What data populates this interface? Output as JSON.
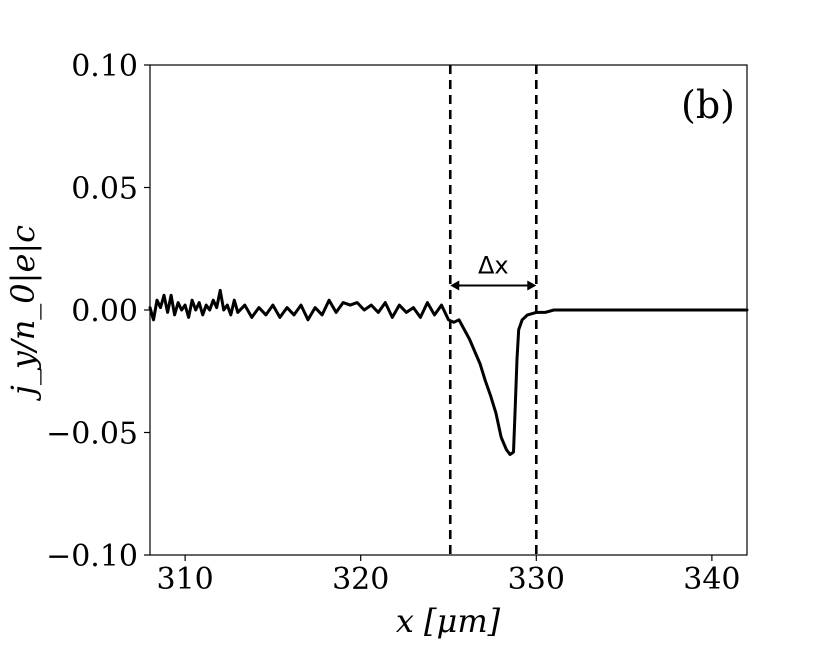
{
  "chart_data": {
    "type": "line",
    "panel_label": "(b)",
    "xlabel": "x [μm]",
    "ylabel": "j_y/n_0|e|c",
    "xlim": [
      308,
      342
    ],
    "ylim": [
      -0.1,
      0.1
    ],
    "xticks": [
      310,
      320,
      330,
      340
    ],
    "xtick_labels": [
      "310",
      "320",
      "330",
      "340"
    ],
    "yticks": [
      0.1,
      0.05,
      0.0,
      -0.05,
      -0.1
    ],
    "ytick_labels": [
      "0.10",
      "0.05",
      "0.00",
      "−0.05",
      "−0.10"
    ],
    "grid": false,
    "series": [
      {
        "color": "#000000",
        "x": [
          308.0,
          308.2,
          308.4,
          308.6,
          308.8,
          309.0,
          309.2,
          309.4,
          309.6,
          309.8,
          310.0,
          310.2,
          310.4,
          310.6,
          310.8,
          311.0,
          311.2,
          311.4,
          311.6,
          311.8,
          312.0,
          312.2,
          312.4,
          312.6,
          312.8,
          313.0,
          313.4,
          313.8,
          314.2,
          314.6,
          315.0,
          315.4,
          315.8,
          316.2,
          316.6,
          317.0,
          317.4,
          317.8,
          318.2,
          318.6,
          319.0,
          319.4,
          319.8,
          320.2,
          320.6,
          321.0,
          321.4,
          321.8,
          322.2,
          322.6,
          323.0,
          323.4,
          323.8,
          324.2,
          324.6,
          325.0,
          325.3,
          325.6,
          325.9,
          326.2,
          326.5,
          326.8,
          327.1,
          327.4,
          327.7,
          328.0,
          328.3,
          328.5,
          328.7,
          328.8,
          328.9,
          329.0,
          329.2,
          329.5,
          330.0,
          330.5,
          331.0,
          332.0,
          333.0,
          334.0,
          336.0,
          338.0,
          340.0,
          342.0
        ],
        "y": [
          0.001,
          -0.004,
          0.004,
          0.001,
          0.006,
          -0.001,
          0.006,
          -0.002,
          0.003,
          0.0,
          0.002,
          -0.003,
          0.004,
          0.0,
          0.003,
          -0.002,
          0.002,
          0.0,
          0.004,
          0.001,
          0.008,
          0.0,
          0.002,
          -0.002,
          0.004,
          -0.001,
          0.002,
          -0.003,
          0.001,
          -0.002,
          0.002,
          -0.003,
          0.001,
          -0.002,
          0.002,
          -0.004,
          0.001,
          -0.002,
          0.004,
          -0.001,
          0.003,
          0.002,
          0.003,
          0.0,
          0.002,
          -0.001,
          0.003,
          -0.003,
          0.002,
          -0.001,
          0.001,
          -0.003,
          0.003,
          -0.002,
          0.002,
          -0.004,
          -0.005,
          -0.004,
          -0.008,
          -0.012,
          -0.017,
          -0.022,
          -0.029,
          -0.035,
          -0.042,
          -0.052,
          -0.057,
          -0.059,
          -0.058,
          -0.04,
          -0.02,
          -0.008,
          -0.004,
          -0.002,
          -0.001,
          -0.001,
          0.0,
          0.0,
          0.0,
          0.0,
          0.0,
          0.0,
          0.0,
          0.0
        ]
      }
    ],
    "vlines": [
      325.1,
      330.0
    ],
    "annotations": [
      {
        "text": "Δx",
        "x_from": 325.1,
        "x_to": 330.0,
        "y": 0.01
      }
    ]
  }
}
